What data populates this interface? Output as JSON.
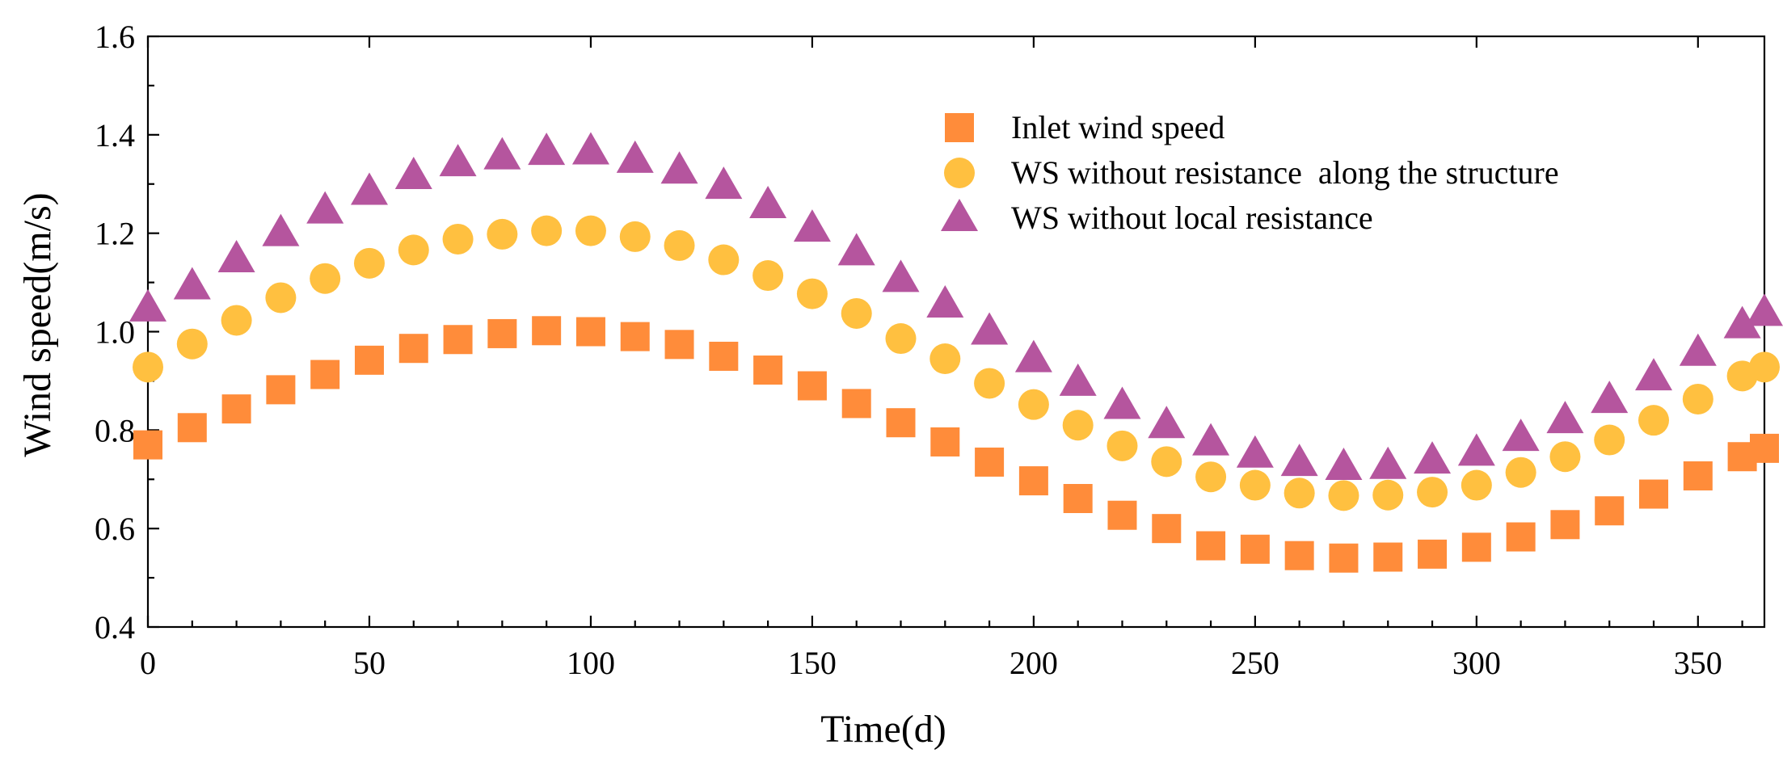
{
  "chart_data": {
    "type": "scatter",
    "title": "",
    "xlabel": "Time(d)",
    "ylabel": "Wind speed(m/s)",
    "xlim": [
      0,
      365
    ],
    "ylim": [
      0.4,
      1.6
    ],
    "xticks": [
      0,
      50,
      100,
      150,
      200,
      250,
      300,
      350
    ],
    "xtick_labels": [
      "0",
      "50",
      "100",
      "150",
      "200",
      "250",
      "300",
      "350"
    ],
    "yticks": [
      0.4,
      0.6,
      0.8,
      1.0,
      1.2,
      1.4,
      1.6
    ],
    "ytick_labels": [
      "0.4",
      "0.6",
      "0.8",
      "1.0",
      "1.2",
      "1.4",
      "1.6"
    ],
    "grid": false,
    "legend_position": "top-right",
    "x": [
      0,
      10,
      20,
      30,
      40,
      50,
      60,
      70,
      80,
      90,
      100,
      110,
      120,
      130,
      140,
      150,
      160,
      170,
      180,
      190,
      200,
      210,
      220,
      230,
      240,
      250,
      260,
      270,
      280,
      290,
      300,
      310,
      320,
      330,
      340,
      350,
      360,
      365
    ],
    "series": [
      {
        "name": "Inlet wind speed",
        "marker": "square",
        "color": "#FF8C3A",
        "values": [
          0.77,
          0.805,
          0.843,
          0.882,
          0.913,
          0.942,
          0.966,
          0.984,
          0.996,
          1.002,
          1.0,
          0.99,
          0.974,
          0.95,
          0.922,
          0.89,
          0.854,
          0.815,
          0.776,
          0.735,
          0.697,
          0.661,
          0.627,
          0.6,
          0.565,
          0.558,
          0.545,
          0.54,
          0.542,
          0.548,
          0.562,
          0.583,
          0.608,
          0.636,
          0.67,
          0.707,
          0.746,
          0.763
        ]
      },
      {
        "name": "WS without resistance  along the structure",
        "marker": "circle",
        "color": "#FFC040",
        "values": [
          0.928,
          0.975,
          1.023,
          1.069,
          1.108,
          1.139,
          1.166,
          1.188,
          1.198,
          1.205,
          1.205,
          1.193,
          1.175,
          1.146,
          1.114,
          1.077,
          1.037,
          0.986,
          0.945,
          0.895,
          0.852,
          0.81,
          0.768,
          0.736,
          0.705,
          0.688,
          0.672,
          0.667,
          0.668,
          0.674,
          0.688,
          0.714,
          0.746,
          0.78,
          0.82,
          0.863,
          0.91,
          0.928
        ]
      },
      {
        "name": "WS without local resistance",
        "marker": "triangle",
        "color": "#B5559E",
        "values": [
          1.047,
          1.092,
          1.147,
          1.2,
          1.246,
          1.284,
          1.316,
          1.342,
          1.356,
          1.365,
          1.366,
          1.349,
          1.327,
          1.296,
          1.257,
          1.209,
          1.161,
          1.107,
          1.055,
          1.0,
          0.944,
          0.896,
          0.849,
          0.81,
          0.775,
          0.75,
          0.733,
          0.725,
          0.727,
          0.738,
          0.754,
          0.784,
          0.82,
          0.861,
          0.907,
          0.957,
          1.013,
          1.038
        ]
      }
    ]
  }
}
